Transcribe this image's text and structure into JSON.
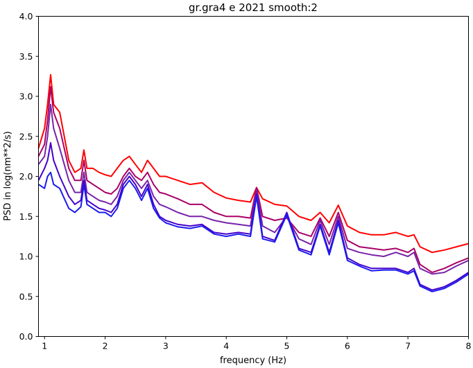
{
  "chart_data": {
    "type": "line",
    "title": "gr.gra4 e 2021 smooth:2",
    "xlabel": "frequency (Hz)",
    "ylabel": "PSD in log(nm**2/s)",
    "xlim": [
      0.9,
      8.0
    ],
    "ylim": [
      0.0,
      4.0
    ],
    "xticks": [
      1,
      2,
      3,
      4,
      5,
      6,
      7,
      8
    ],
    "yticks": [
      0.0,
      0.5,
      1.0,
      1.5,
      2.0,
      2.5,
      3.0,
      3.5,
      4.0
    ],
    "grid": false,
    "legend": "none",
    "series": [
      {
        "color": "#ff0000",
        "x": [
          0.9,
          1.0,
          1.05,
          1.1,
          1.15,
          1.25,
          1.4,
          1.5,
          1.6,
          1.65,
          1.7,
          1.8,
          1.9,
          2.0,
          2.1,
          2.2,
          2.3,
          2.4,
          2.5,
          2.6,
          2.7,
          2.8,
          2.9,
          3.0,
          3.2,
          3.4,
          3.6,
          3.8,
          4.0,
          4.2,
          4.4,
          4.5,
          4.6,
          4.8,
          5.0,
          5.2,
          5.4,
          5.55,
          5.7,
          5.85,
          6.0,
          6.2,
          6.4,
          6.6,
          6.8,
          7.0,
          7.1,
          7.2,
          7.4,
          7.6,
          7.8,
          8.0
        ],
        "y": [
          2.35,
          2.6,
          2.9,
          3.27,
          2.9,
          2.8,
          2.2,
          2.05,
          2.1,
          2.33,
          2.1,
          2.1,
          2.05,
          2.02,
          2.0,
          2.1,
          2.2,
          2.25,
          2.15,
          2.05,
          2.2,
          2.1,
          2.0,
          2.0,
          1.95,
          1.9,
          1.92,
          1.8,
          1.73,
          1.7,
          1.68,
          1.86,
          1.72,
          1.65,
          1.63,
          1.5,
          1.45,
          1.55,
          1.42,
          1.64,
          1.38,
          1.3,
          1.27,
          1.27,
          1.3,
          1.25,
          1.27,
          1.12,
          1.05,
          1.08,
          1.12,
          1.16
        ]
      },
      {
        "color": "#aa0066",
        "x": [
          0.9,
          1.0,
          1.05,
          1.1,
          1.15,
          1.25,
          1.4,
          1.5,
          1.6,
          1.65,
          1.7,
          1.8,
          1.9,
          2.0,
          2.1,
          2.2,
          2.3,
          2.4,
          2.5,
          2.6,
          2.7,
          2.8,
          2.9,
          3.0,
          3.2,
          3.4,
          3.6,
          3.8,
          4.0,
          4.2,
          4.4,
          4.5,
          4.6,
          4.8,
          5.0,
          5.2,
          5.4,
          5.55,
          5.7,
          5.85,
          6.0,
          6.2,
          6.4,
          6.6,
          6.8,
          7.0,
          7.1,
          7.2,
          7.4,
          7.6,
          7.8,
          8.0
        ],
        "y": [
          2.25,
          2.4,
          2.7,
          3.12,
          2.8,
          2.6,
          2.1,
          1.95,
          1.95,
          2.2,
          1.95,
          1.9,
          1.85,
          1.8,
          1.78,
          1.85,
          2.0,
          2.1,
          2.0,
          1.95,
          2.05,
          1.9,
          1.8,
          1.78,
          1.72,
          1.65,
          1.65,
          1.55,
          1.5,
          1.5,
          1.48,
          1.86,
          1.5,
          1.45,
          1.48,
          1.3,
          1.25,
          1.48,
          1.25,
          1.55,
          1.2,
          1.12,
          1.1,
          1.08,
          1.1,
          1.05,
          1.1,
          0.9,
          0.8,
          0.85,
          0.92,
          0.98
        ]
      },
      {
        "color": "#7722aa",
        "x": [
          0.9,
          1.0,
          1.05,
          1.1,
          1.15,
          1.25,
          1.4,
          1.5,
          1.6,
          1.65,
          1.7,
          1.8,
          1.9,
          2.0,
          2.1,
          2.2,
          2.3,
          2.4,
          2.5,
          2.6,
          2.7,
          2.8,
          2.9,
          3.0,
          3.2,
          3.4,
          3.6,
          3.8,
          4.0,
          4.2,
          4.4,
          4.5,
          4.6,
          4.8,
          5.0,
          5.2,
          5.4,
          5.55,
          5.7,
          5.85,
          6.0,
          6.2,
          6.4,
          6.6,
          6.8,
          7.0,
          7.1,
          7.2,
          7.4,
          7.6,
          7.8,
          8.0
        ],
        "y": [
          2.15,
          2.25,
          2.5,
          2.9,
          2.6,
          2.35,
          1.95,
          1.8,
          1.8,
          2.05,
          1.8,
          1.75,
          1.7,
          1.68,
          1.65,
          1.75,
          1.95,
          2.05,
          1.95,
          1.85,
          1.95,
          1.75,
          1.65,
          1.62,
          1.55,
          1.5,
          1.5,
          1.45,
          1.42,
          1.4,
          1.38,
          1.83,
          1.38,
          1.3,
          1.5,
          1.22,
          1.15,
          1.45,
          1.15,
          1.5,
          1.1,
          1.05,
          1.02,
          1.0,
          1.05,
          1.0,
          1.05,
          0.85,
          0.78,
          0.8,
          0.88,
          0.95
        ]
      },
      {
        "color": "#4400cc",
        "x": [
          0.9,
          1.0,
          1.05,
          1.1,
          1.15,
          1.25,
          1.4,
          1.5,
          1.6,
          1.65,
          1.7,
          1.8,
          1.9,
          2.0,
          2.1,
          2.2,
          2.3,
          2.4,
          2.5,
          2.6,
          2.7,
          2.8,
          2.9,
          3.0,
          3.2,
          3.4,
          3.6,
          3.8,
          4.0,
          4.2,
          4.4,
          4.5,
          4.6,
          4.8,
          5.0,
          5.2,
          5.4,
          5.55,
          5.7,
          5.85,
          6.0,
          6.2,
          6.4,
          6.6,
          6.8,
          7.0,
          7.1,
          7.2,
          7.4,
          7.6,
          7.8,
          8.0
        ],
        "y": [
          1.95,
          2.1,
          2.2,
          2.42,
          2.2,
          2.0,
          1.75,
          1.65,
          1.7,
          1.95,
          1.7,
          1.65,
          1.6,
          1.58,
          1.55,
          1.65,
          1.9,
          2.0,
          1.9,
          1.75,
          1.9,
          1.65,
          1.5,
          1.45,
          1.4,
          1.38,
          1.4,
          1.3,
          1.28,
          1.3,
          1.28,
          1.78,
          1.25,
          1.2,
          1.55,
          1.1,
          1.05,
          1.4,
          1.05,
          1.45,
          0.98,
          0.9,
          0.85,
          0.85,
          0.85,
          0.8,
          0.85,
          0.65,
          0.58,
          0.62,
          0.7,
          0.8
        ]
      },
      {
        "color": "#1a1aee",
        "x": [
          0.9,
          1.0,
          1.05,
          1.1,
          1.15,
          1.25,
          1.4,
          1.5,
          1.6,
          1.65,
          1.7,
          1.8,
          1.9,
          2.0,
          2.1,
          2.2,
          2.3,
          2.4,
          2.5,
          2.6,
          2.7,
          2.8,
          2.9,
          3.0,
          3.2,
          3.4,
          3.6,
          3.8,
          4.0,
          4.2,
          4.4,
          4.5,
          4.6,
          4.8,
          5.0,
          5.2,
          5.4,
          5.55,
          5.7,
          5.85,
          6.0,
          6.2,
          6.4,
          6.6,
          6.8,
          7.0,
          7.1,
          7.2,
          7.4,
          7.6,
          7.8,
          8.0
        ],
        "y": [
          1.9,
          1.85,
          2.0,
          2.05,
          1.9,
          1.85,
          1.6,
          1.55,
          1.62,
          1.9,
          1.65,
          1.6,
          1.55,
          1.55,
          1.5,
          1.6,
          1.85,
          1.95,
          1.85,
          1.7,
          1.85,
          1.6,
          1.48,
          1.42,
          1.37,
          1.35,
          1.38,
          1.28,
          1.25,
          1.28,
          1.25,
          1.75,
          1.22,
          1.18,
          1.52,
          1.08,
          1.02,
          1.38,
          1.02,
          1.42,
          0.95,
          0.88,
          0.82,
          0.83,
          0.83,
          0.78,
          0.82,
          0.63,
          0.56,
          0.6,
          0.68,
          0.78
        ]
      }
    ]
  }
}
